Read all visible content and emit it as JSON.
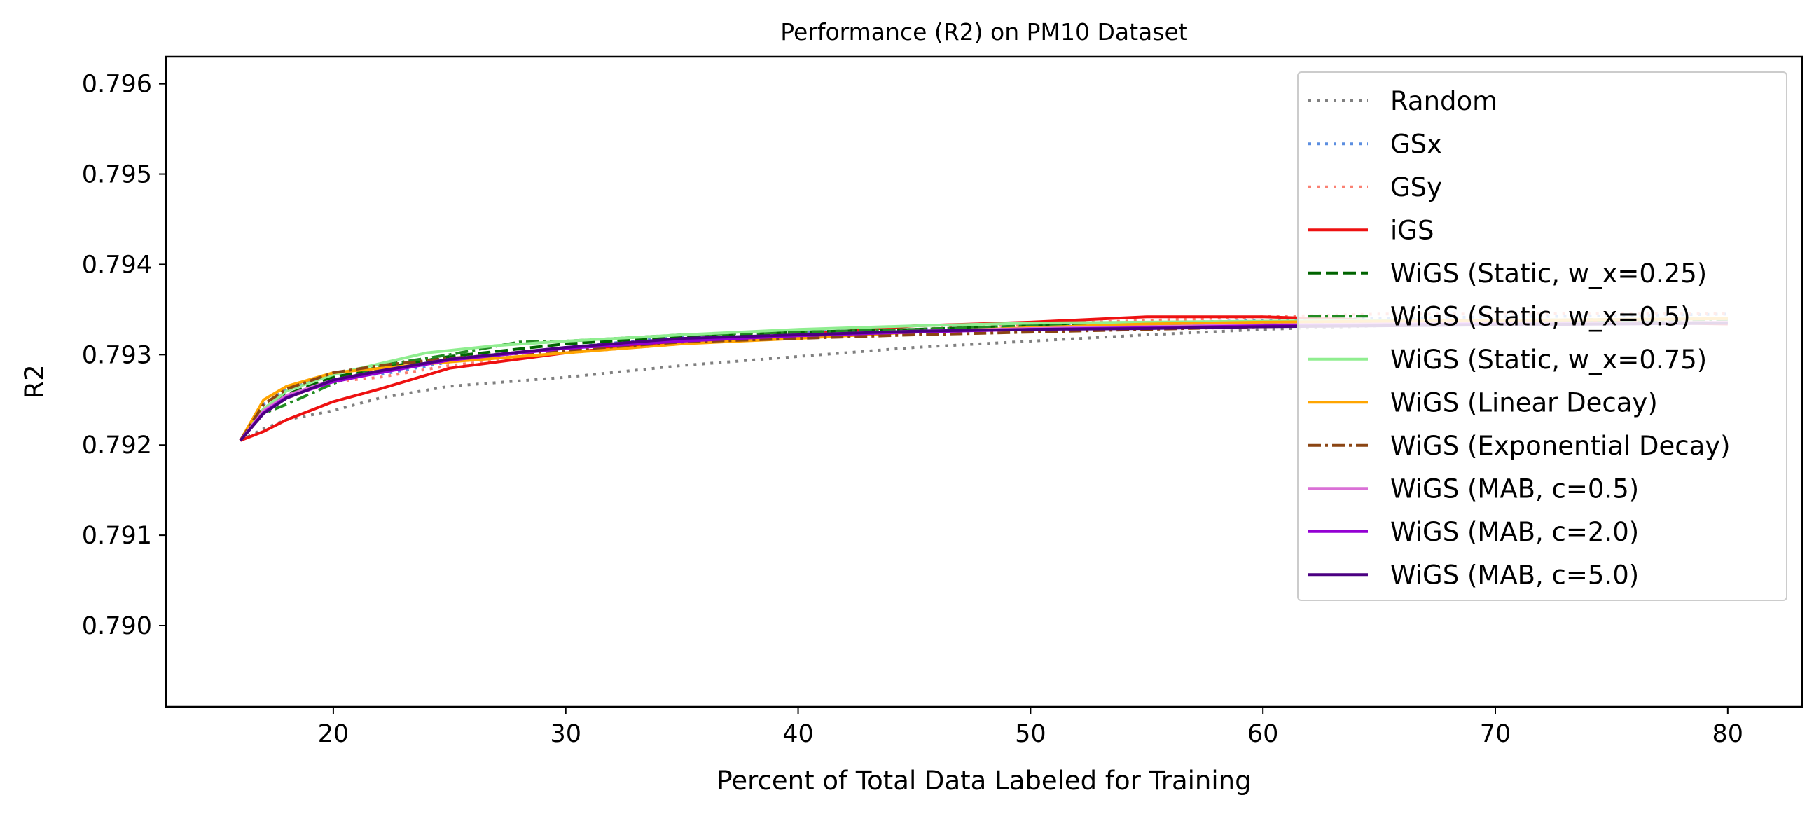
{
  "chart_data": {
    "type": "line",
    "title": "Performance (R2) on PM10 Dataset",
    "xlabel": "Percent of Total Data Labeled for Training",
    "ylabel": "R2",
    "xlim": [
      12.8,
      83.2
    ],
    "ylim": [
      0.7891,
      0.7963
    ],
    "xticks": [
      20,
      30,
      40,
      50,
      60,
      70,
      80
    ],
    "yticks": [
      0.79,
      0.791,
      0.792,
      0.793,
      0.794,
      0.795,
      0.796
    ],
    "grid": false,
    "legend_position": "top-right",
    "series": [
      {
        "name": "Random",
        "color": "#808080",
        "dash": "dotted",
        "x": [
          16,
          17,
          18,
          20,
          22,
          25,
          30,
          35,
          40,
          45,
          50,
          55,
          60,
          65,
          70,
          75,
          80
        ],
        "y": [
          0.79205,
          0.79218,
          0.79228,
          0.79238,
          0.79252,
          0.79265,
          0.79275,
          0.79288,
          0.79298,
          0.79308,
          0.79315,
          0.79322,
          0.79328,
          0.79332,
          0.79335,
          0.79338,
          0.7934
        ]
      },
      {
        "name": "GSx",
        "color": "#5b8ee0",
        "dash": "dotted",
        "x": [
          16,
          17,
          18,
          20,
          22,
          25,
          30,
          35,
          40,
          45,
          50,
          55,
          60,
          65,
          70,
          75,
          80
        ],
        "y": [
          0.79205,
          0.79245,
          0.79262,
          0.7928,
          0.79278,
          0.79292,
          0.79308,
          0.7932,
          0.79325,
          0.79328,
          0.79332,
          0.79335,
          0.79338,
          0.7934,
          0.79342,
          0.79343,
          0.79345
        ]
      },
      {
        "name": "GSy",
        "color": "#fa8072",
        "dash": "dotted",
        "x": [
          16,
          17,
          18,
          20,
          22,
          25,
          30,
          35,
          40,
          45,
          50,
          55,
          60,
          65,
          70,
          75,
          80
        ],
        "y": [
          0.79205,
          0.79235,
          0.79252,
          0.7927,
          0.79275,
          0.79288,
          0.79302,
          0.79312,
          0.7932,
          0.79328,
          0.79334,
          0.79338,
          0.79342,
          0.79345,
          0.79345,
          0.79346,
          0.79346
        ]
      },
      {
        "name": "iGS",
        "color": "#ee1111",
        "dash": "solid",
        "x": [
          16,
          17,
          18,
          20,
          22,
          25,
          30,
          35,
          40,
          45,
          50,
          55,
          60,
          65,
          70,
          75,
          80
        ],
        "y": [
          0.79205,
          0.79215,
          0.79228,
          0.79248,
          0.79262,
          0.79285,
          0.79302,
          0.79315,
          0.79322,
          0.79332,
          0.79336,
          0.79342,
          0.79342,
          0.79338,
          0.79338,
          0.79336,
          0.79334
        ]
      },
      {
        "name": "WiGS (Static, w_x=0.25)",
        "color": "#006400",
        "dash": "dashed",
        "x": [
          16,
          17,
          18,
          20,
          22,
          25,
          30,
          35,
          40,
          45,
          50,
          55,
          60,
          65,
          70,
          75,
          80
        ],
        "y": [
          0.79205,
          0.7924,
          0.79256,
          0.79275,
          0.79285,
          0.79298,
          0.79312,
          0.7932,
          0.79325,
          0.79328,
          0.79332,
          0.79335,
          0.79336,
          0.79338,
          0.79338,
          0.79339,
          0.7934
        ]
      },
      {
        "name": "WiGS (Static, w_x=0.5)",
        "color": "#228b22",
        "dash": "dashdot",
        "x": [
          16,
          17,
          18,
          20,
          22,
          25,
          28,
          30,
          35,
          40,
          45,
          50,
          55,
          60,
          65,
          70,
          75,
          80
        ],
        "y": [
          0.79205,
          0.79235,
          0.79245,
          0.79268,
          0.79288,
          0.793,
          0.79314,
          0.79315,
          0.79322,
          0.79325,
          0.79328,
          0.79332,
          0.79334,
          0.79335,
          0.79336,
          0.79336,
          0.79337,
          0.79338
        ]
      },
      {
        "name": "WiGS (Static, w_x=0.75)",
        "color": "#90ee90",
        "dash": "solid",
        "x": [
          16,
          17,
          18,
          20,
          22,
          24,
          27,
          30,
          35,
          40,
          45,
          50,
          55,
          60,
          65,
          70,
          75,
          80
        ],
        "y": [
          0.79205,
          0.7924,
          0.7926,
          0.79278,
          0.7929,
          0.79302,
          0.7931,
          0.79315,
          0.79322,
          0.79328,
          0.79332,
          0.79335,
          0.79336,
          0.79337,
          0.79338,
          0.79338,
          0.79339,
          0.7934
        ]
      },
      {
        "name": "WiGS (Linear Decay)",
        "color": "#ffa500",
        "dash": "solid",
        "x": [
          16,
          17,
          18,
          20,
          22,
          25,
          30,
          35,
          40,
          45,
          50,
          55,
          60,
          65,
          70,
          75,
          80
        ],
        "y": [
          0.79205,
          0.7925,
          0.79265,
          0.7928,
          0.79285,
          0.79292,
          0.79302,
          0.79312,
          0.79318,
          0.79325,
          0.7933,
          0.79334,
          0.79336,
          0.79337,
          0.79338,
          0.79339,
          0.7934
        ]
      },
      {
        "name": "WiGS (Exponential Decay)",
        "color": "#8b4513",
        "dash": "dashdot",
        "x": [
          16,
          17,
          18,
          20,
          22,
          25,
          30,
          35,
          40,
          45,
          50,
          55,
          60,
          65,
          70,
          75,
          80
        ],
        "y": [
          0.79205,
          0.79245,
          0.79262,
          0.7928,
          0.79288,
          0.79296,
          0.79305,
          0.79314,
          0.79318,
          0.79322,
          0.79325,
          0.79328,
          0.79331,
          0.79333,
          0.79334,
          0.79335,
          0.79336
        ]
      },
      {
        "name": "WiGS (MAB, c=0.5)",
        "color": "#da70d6",
        "dash": "solid",
        "x": [
          16,
          17,
          18,
          20,
          22,
          25,
          30,
          35,
          40,
          45,
          50,
          55,
          60,
          65,
          70,
          75,
          80
        ],
        "y": [
          0.79205,
          0.79238,
          0.79255,
          0.79272,
          0.79282,
          0.79295,
          0.79308,
          0.79316,
          0.79322,
          0.79326,
          0.79329,
          0.79331,
          0.79333,
          0.79334,
          0.79335,
          0.79335,
          0.79336
        ]
      },
      {
        "name": "WiGS (MAB, c=2.0)",
        "color": "#9400d3",
        "dash": "solid",
        "x": [
          16,
          17,
          18,
          20,
          22,
          25,
          30,
          35,
          40,
          45,
          50,
          55,
          60,
          65,
          70,
          75,
          80
        ],
        "y": [
          0.79205,
          0.79236,
          0.79253,
          0.7927,
          0.7928,
          0.79294,
          0.79307,
          0.79315,
          0.79321,
          0.79325,
          0.79328,
          0.7933,
          0.79332,
          0.79333,
          0.79334,
          0.79334,
          0.79335
        ]
      },
      {
        "name": "WiGS (MAB, c=5.0)",
        "color": "#4b0082",
        "dash": "solid",
        "x": [
          16,
          17,
          18,
          20,
          22,
          25,
          30,
          35,
          40,
          45,
          50,
          55,
          60,
          65,
          70,
          75,
          80
        ],
        "y": [
          0.79205,
          0.79235,
          0.79252,
          0.79272,
          0.79282,
          0.79295,
          0.79308,
          0.79318,
          0.79322,
          0.79326,
          0.79328,
          0.79329,
          0.79331,
          0.79332,
          0.79333,
          0.79334,
          0.79335
        ]
      }
    ]
  }
}
